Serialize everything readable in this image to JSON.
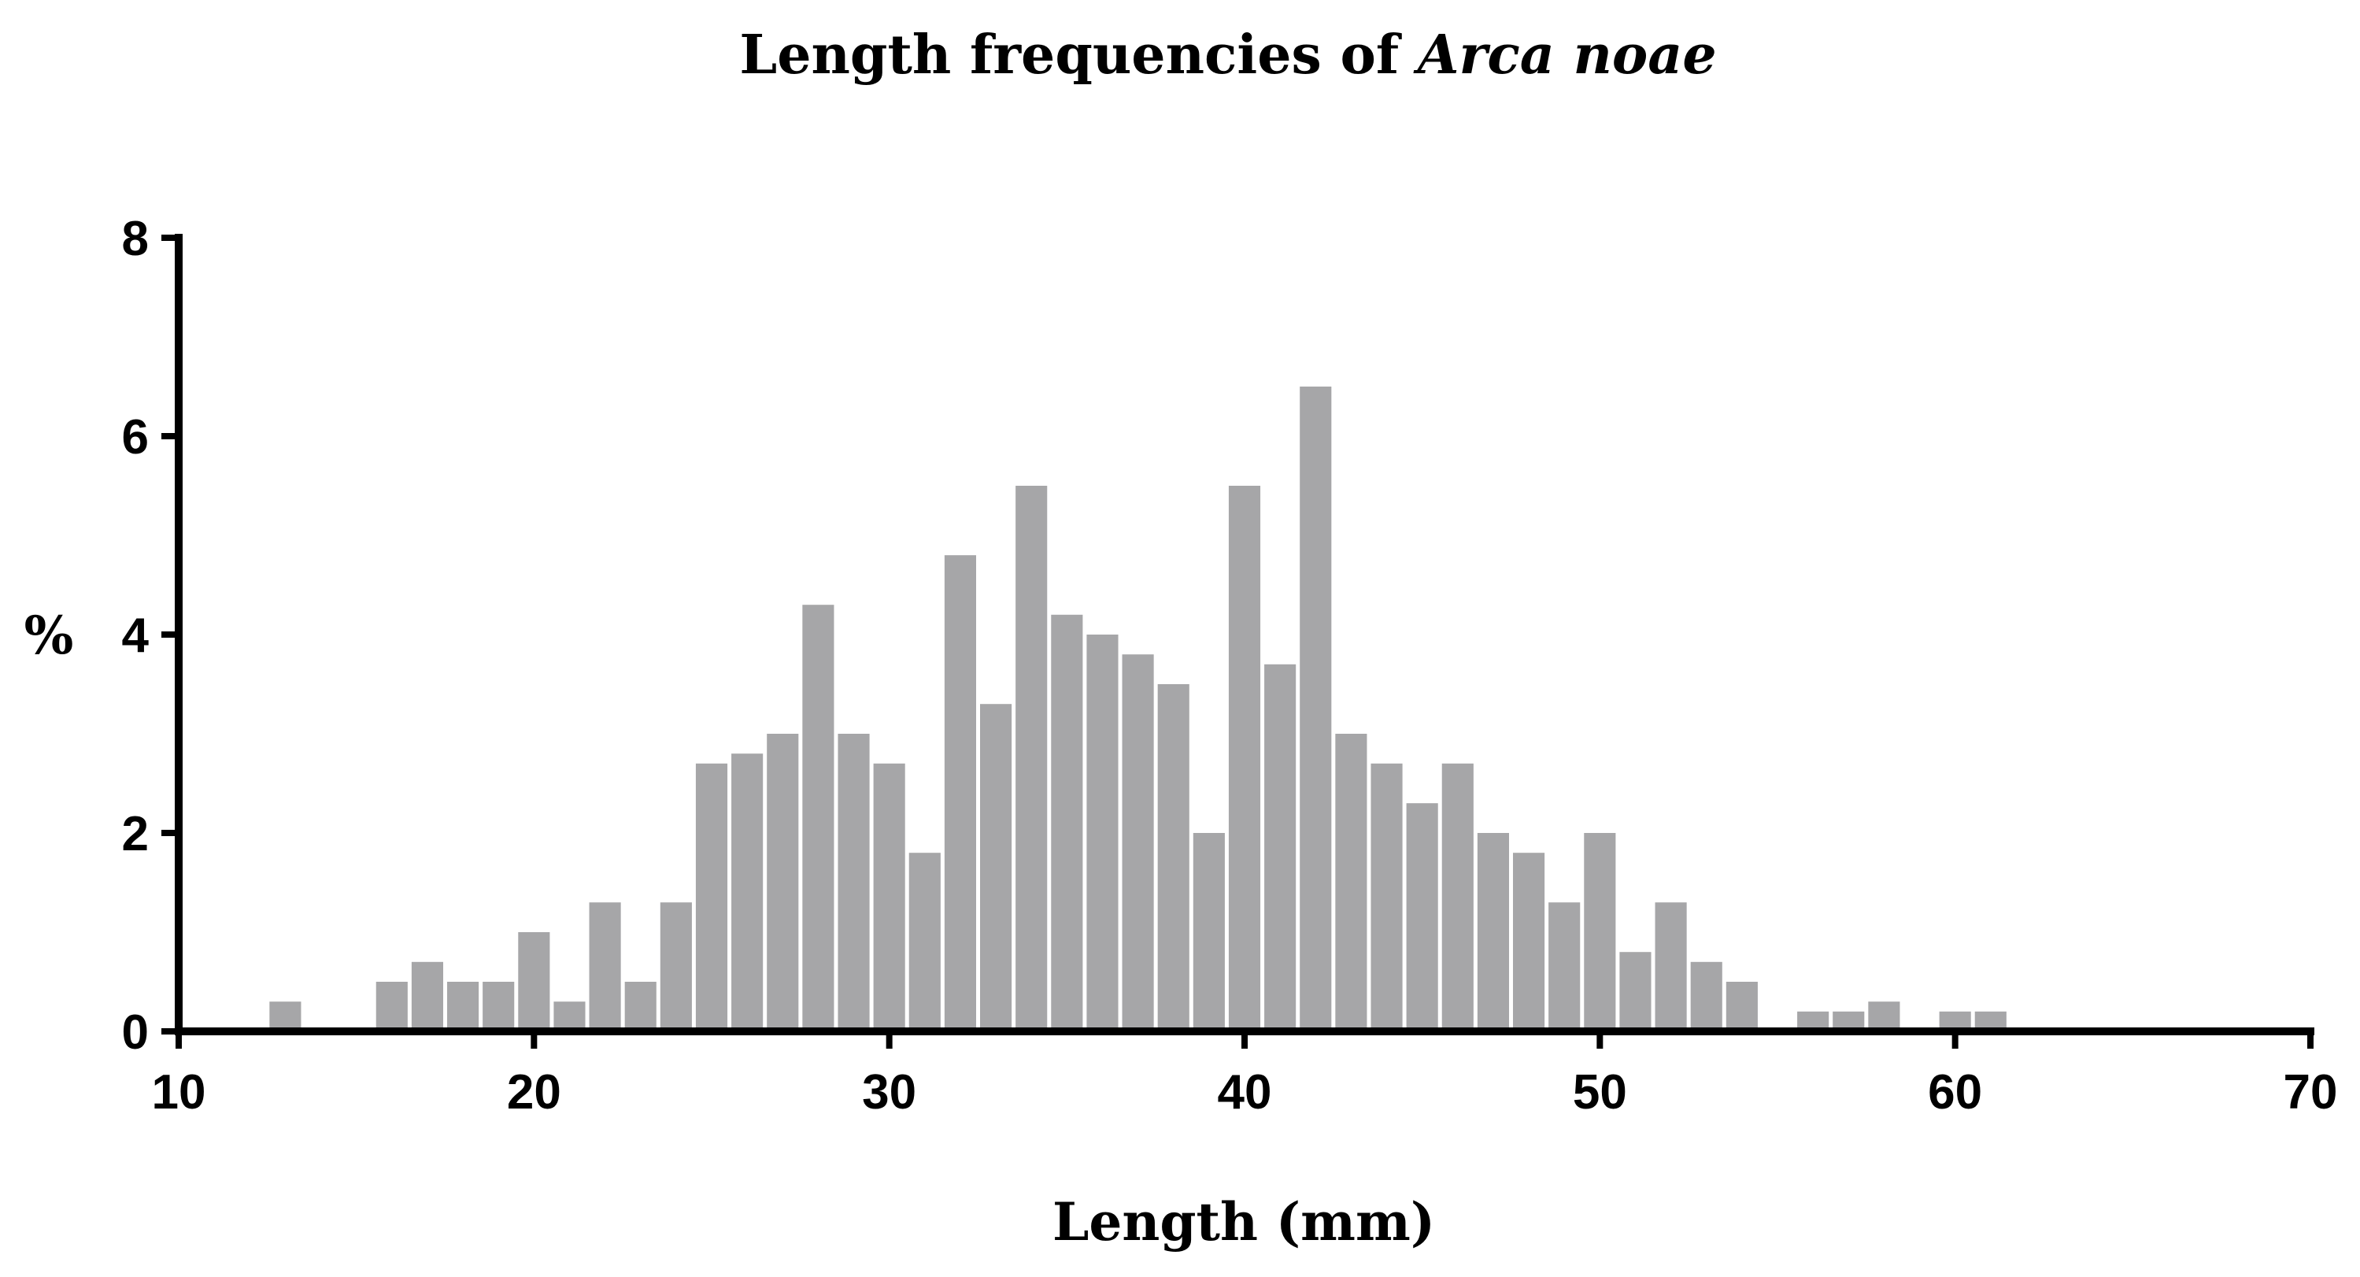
{
  "chart_data": {
    "type": "bar",
    "title_parts": [
      {
        "text": "Length frequencies of ",
        "italic": false
      },
      {
        "text": "Arca noae",
        "italic": true
      }
    ],
    "xlabel": "Length (mm)",
    "ylabel": "%",
    "xlim": [
      10,
      70
    ],
    "ylim": [
      0,
      8
    ],
    "xticks": [
      10,
      20,
      30,
      40,
      50,
      60,
      70
    ],
    "yticks": [
      0,
      2,
      4,
      6,
      8
    ],
    "grid": false,
    "bar_color": "#a6a6a8",
    "bin_width": 1,
    "x": [
      13,
      16,
      17,
      18,
      19,
      20,
      21,
      22,
      23,
      24,
      25,
      26,
      27,
      28,
      29,
      30,
      31,
      32,
      33,
      34,
      35,
      36,
      37,
      38,
      39,
      40,
      41,
      42,
      43,
      44,
      45,
      46,
      47,
      48,
      49,
      50,
      51,
      52,
      53,
      54,
      56,
      57,
      58,
      60,
      61
    ],
    "values": [
      0.3,
      0.5,
      0.7,
      0.5,
      0.5,
      1.0,
      0.3,
      1.3,
      0.5,
      1.3,
      2.7,
      2.8,
      3.0,
      4.3,
      3.0,
      2.7,
      1.8,
      4.8,
      3.3,
      5.5,
      4.2,
      4.0,
      3.8,
      3.5,
      2.0,
      5.5,
      3.7,
      6.5,
      3.0,
      2.7,
      2.3,
      2.7,
      2.0,
      1.8,
      1.3,
      2.0,
      0.8,
      1.3,
      0.7,
      0.5,
      0.2,
      0.2,
      0.3,
      0.2,
      0.2
    ]
  }
}
